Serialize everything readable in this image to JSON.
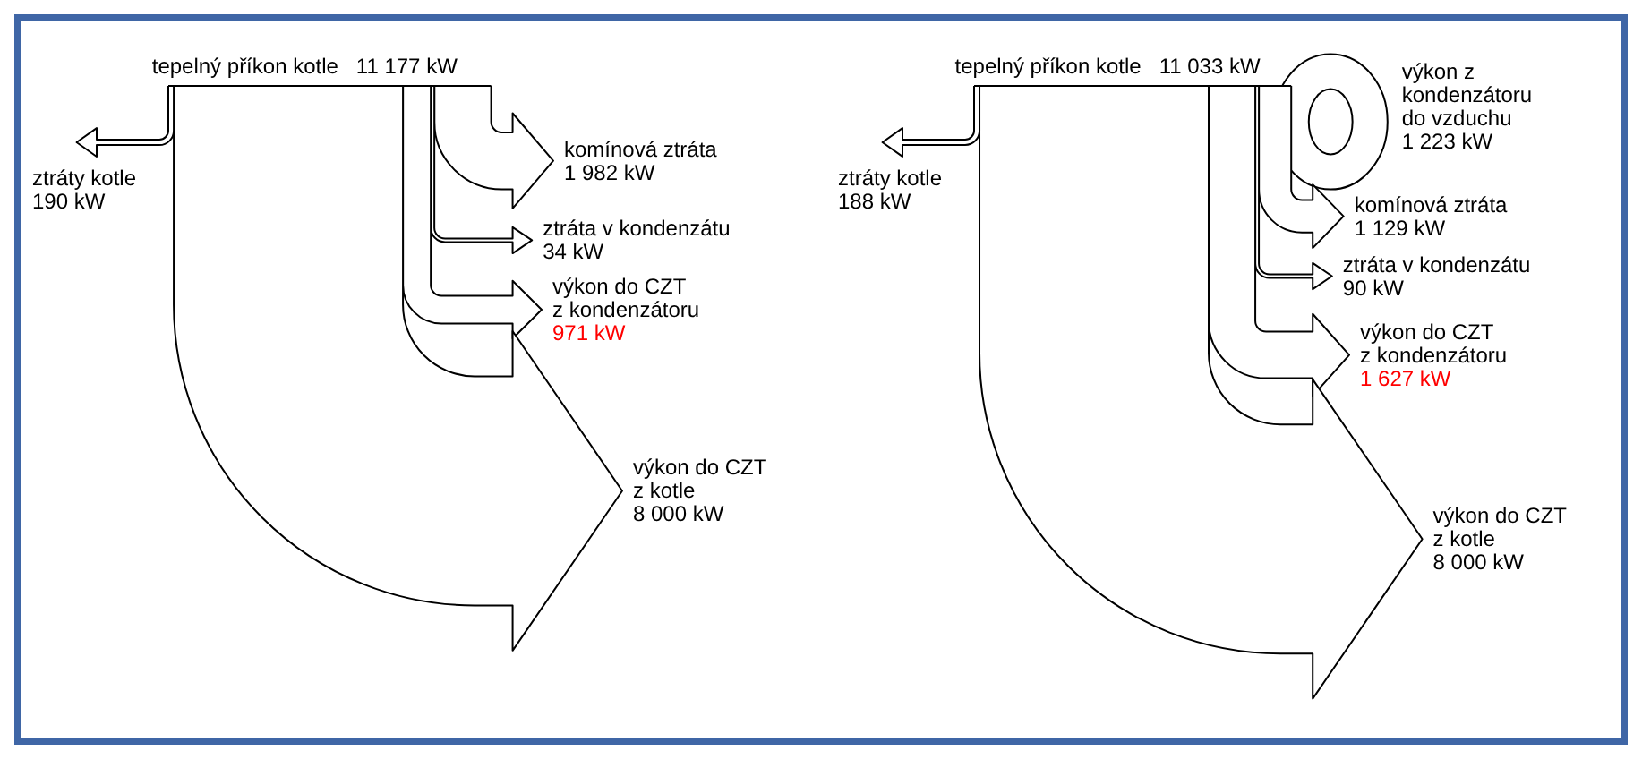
{
  "chart_data": [
    {
      "type": "other",
      "categories": [
        "tepelný příkon kotle",
        "ztráty kotle",
        "komínová ztráta",
        "ztráta v kondenzátu",
        "výkon do CZT\nz kondenzátoru",
        "výkon do CZT\nz kotle"
      ],
      "values": [
        11177,
        190,
        1982,
        34,
        971,
        8000
      ],
      "value_labels": [
        "11 177 kW",
        "190 kW",
        "1 982 kW",
        "34 kW",
        "971 kW",
        "8 000 kW"
      ],
      "colors": [
        "#000000",
        "#000000",
        "#000000",
        "#000000",
        "#ff0000",
        "#000000"
      ]
    },
    {
      "type": "other",
      "categories": [
        "tepelný příkon kotle",
        "ztráty kotle",
        "výkon z\nkondenzátoru\ndo vzduchu",
        "komínová ztráta",
        "ztráta v kondenzátu",
        "výkon do CZT\nz kondenzátoru",
        "výkon do CZT\nz kotle"
      ],
      "values": [
        11033,
        188,
        1223,
        1129,
        90,
        1627,
        8000
      ],
      "value_labels": [
        "11 033 kW",
        "188 kW",
        "1 223 kW",
        "1 129 kW",
        "90 kW",
        "1 627 kW",
        "8 000 kW"
      ],
      "colors": [
        "#000000",
        "#000000",
        "#000000",
        "#000000",
        "#000000",
        "#ff0000",
        "#000000"
      ]
    }
  ]
}
